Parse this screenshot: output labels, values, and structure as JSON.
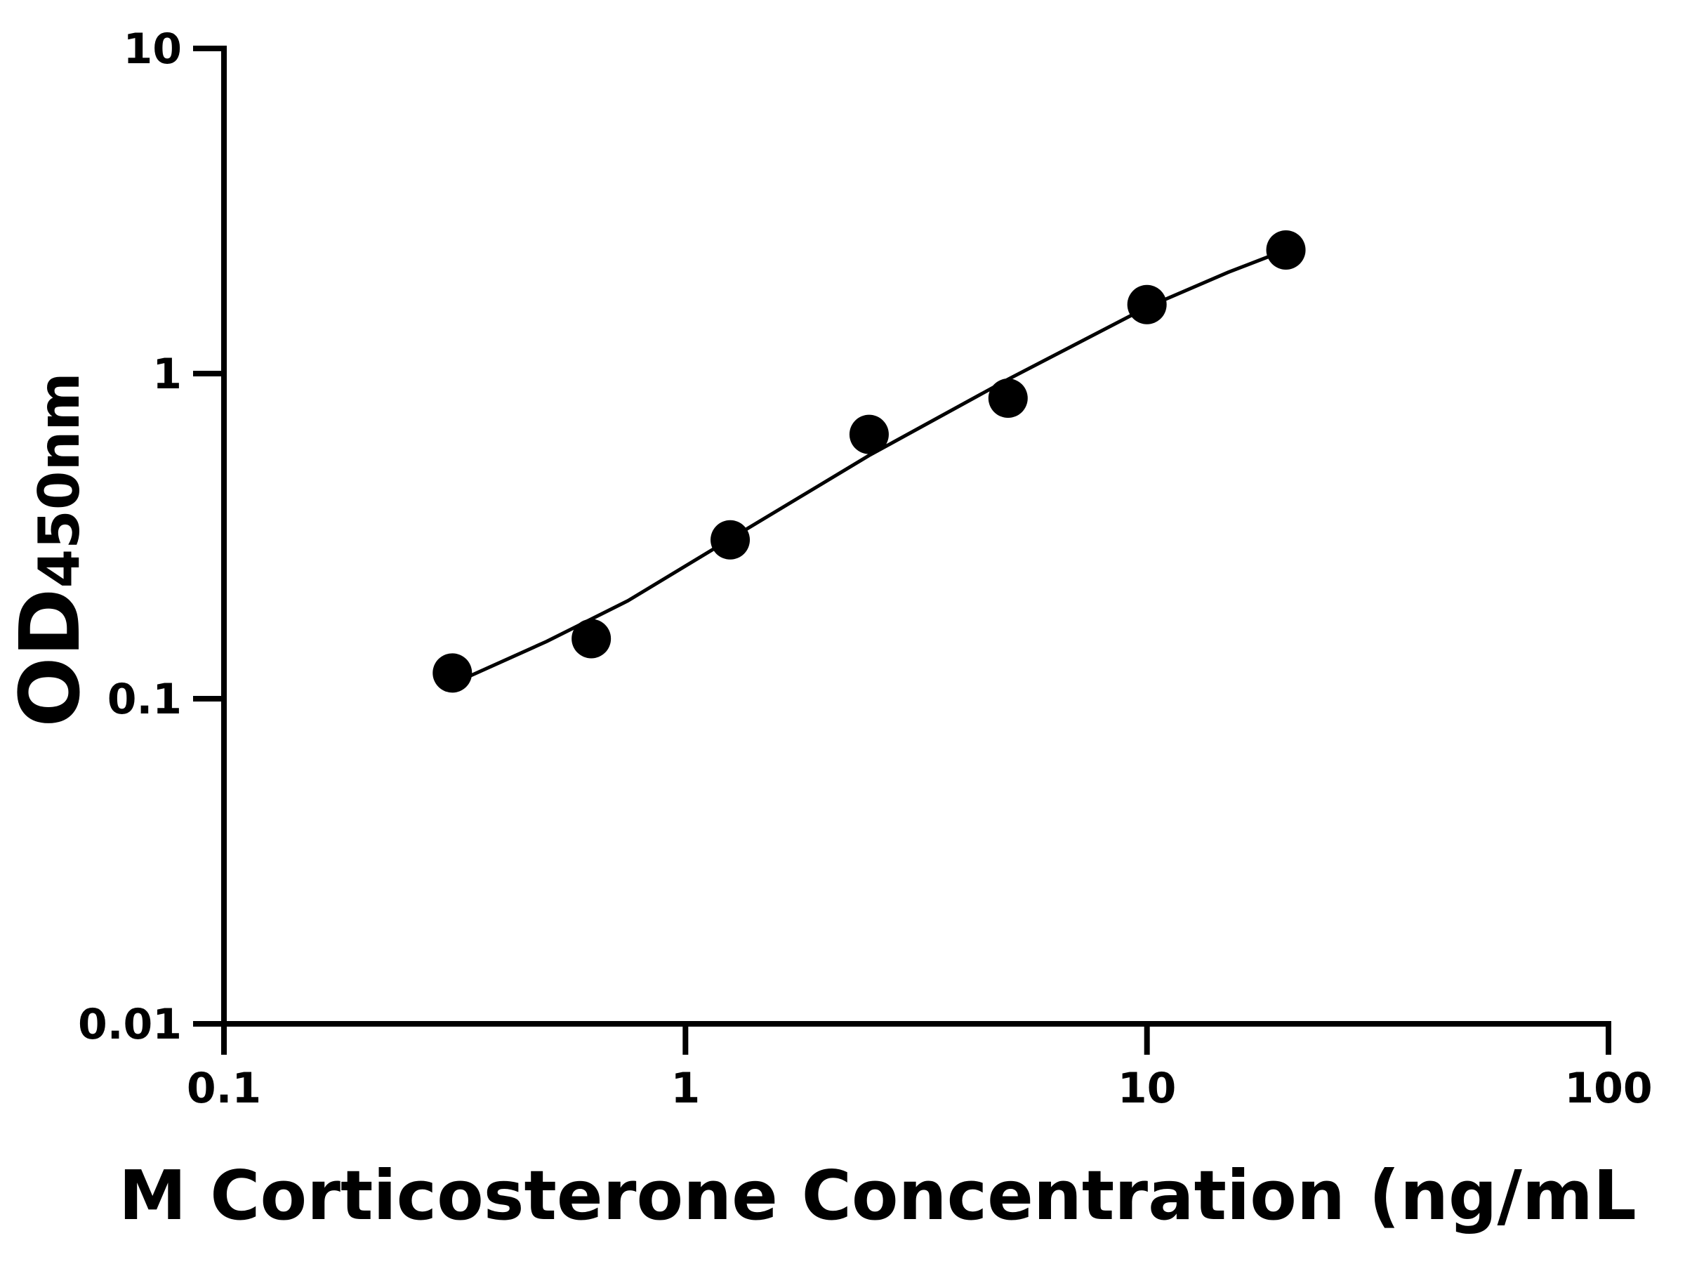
{
  "chart_data": {
    "type": "scatter",
    "x_label": "M Corticosterone Concentration (ng/mL",
    "y_label": "OD",
    "y_label_sub": "450nm",
    "x": [
      0.3125,
      0.625,
      1.25,
      2.5,
      5,
      10,
      20
    ],
    "values": [
      0.12,
      0.153,
      0.308,
      0.65,
      0.84,
      1.63,
      2.4
    ],
    "color": "#000000",
    "fit": {
      "type": "line",
      "color": "#000000",
      "x": [
        0.33,
        0.5,
        0.75,
        1.25,
        2.5,
        5,
        10,
        15,
        20
      ],
      "values": [
        0.115,
        0.15,
        0.2,
        0.31,
        0.56,
        0.96,
        1.6,
        2.05,
        2.4
      ]
    },
    "xlog": true,
    "ylog": true,
    "xlim": [
      0.1,
      100
    ],
    "ylim": [
      0.01,
      10
    ],
    "xticks": [
      0.1,
      1,
      10,
      100
    ],
    "yticks": [
      0.01,
      0.1,
      1,
      10
    ],
    "grid": false
  }
}
